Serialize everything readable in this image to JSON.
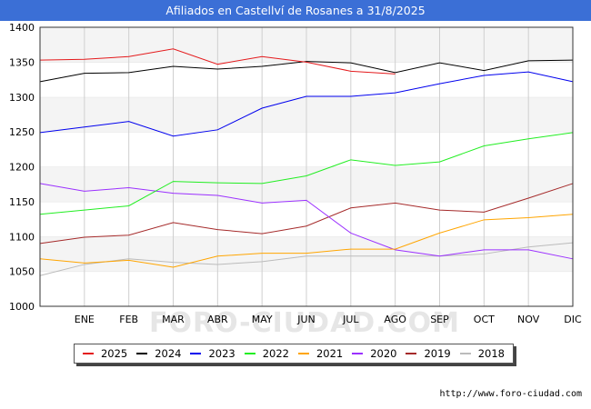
{
  "title": "Afiliados en Castellví de Rosanes a 31/8/2025",
  "source": "http://www.foro-ciudad.com",
  "watermark": "FORO-CIUDAD.COM",
  "chart_data": {
    "type": "line",
    "categories": [
      "",
      "ENE",
      "FEB",
      "MAR",
      "ABR",
      "MAY",
      "JUN",
      "JUL",
      "AGO",
      "SEP",
      "OCT",
      "NOV",
      "DIC"
    ],
    "ylim": [
      1000,
      1400
    ],
    "yticks": [
      1000,
      1050,
      1100,
      1150,
      1200,
      1250,
      1300,
      1350,
      1400
    ],
    "xlabel": "",
    "ylabel": "",
    "grid": true,
    "legend_position": "bottom",
    "series": [
      {
        "name": "2025",
        "color": "#e41a1c",
        "values": [
          1353,
          1354,
          1358,
          1369,
          1347,
          1358,
          1350,
          1337,
          1333,
          null,
          null,
          null,
          null
        ]
      },
      {
        "name": "2024",
        "color": "#000000",
        "values": [
          1322,
          1334,
          1335,
          1344,
          1340,
          1344,
          1351,
          1349,
          1335,
          1349,
          1338,
          1352,
          1353
        ]
      },
      {
        "name": "2023",
        "color": "#0000ee",
        "values": [
          1249,
          1257,
          1265,
          1244,
          1253,
          1284,
          1301,
          1301,
          1306,
          1319,
          1331,
          1336,
          1322
        ]
      },
      {
        "name": "2022",
        "color": "#22ee22",
        "values": [
          1132,
          1138,
          1144,
          1179,
          1177,
          1176,
          1187,
          1210,
          1202,
          1207,
          1230,
          1240,
          1249
        ]
      },
      {
        "name": "2021",
        "color": "#ffa500",
        "values": [
          1068,
          1062,
          1066,
          1056,
          1072,
          1076,
          1076,
          1082,
          1082,
          1105,
          1124,
          1127,
          1132
        ]
      },
      {
        "name": "2020",
        "color": "#9b30ff",
        "values": [
          1176,
          1165,
          1170,
          1162,
          1159,
          1148,
          1152,
          1105,
          1081,
          1072,
          1081,
          1081,
          1068
        ]
      },
      {
        "name": "2019",
        "color": "#a52a2a",
        "values": [
          1090,
          1099,
          1102,
          1120,
          1110,
          1104,
          1115,
          1141,
          1148,
          1138,
          1135,
          1155,
          1176
        ]
      },
      {
        "name": "2018",
        "color": "#bbbbbb",
        "values": [
          1044,
          1060,
          1068,
          1063,
          1060,
          1064,
          1072,
          1072,
          1072,
          1072,
          1075,
          1085,
          1091
        ]
      }
    ]
  }
}
